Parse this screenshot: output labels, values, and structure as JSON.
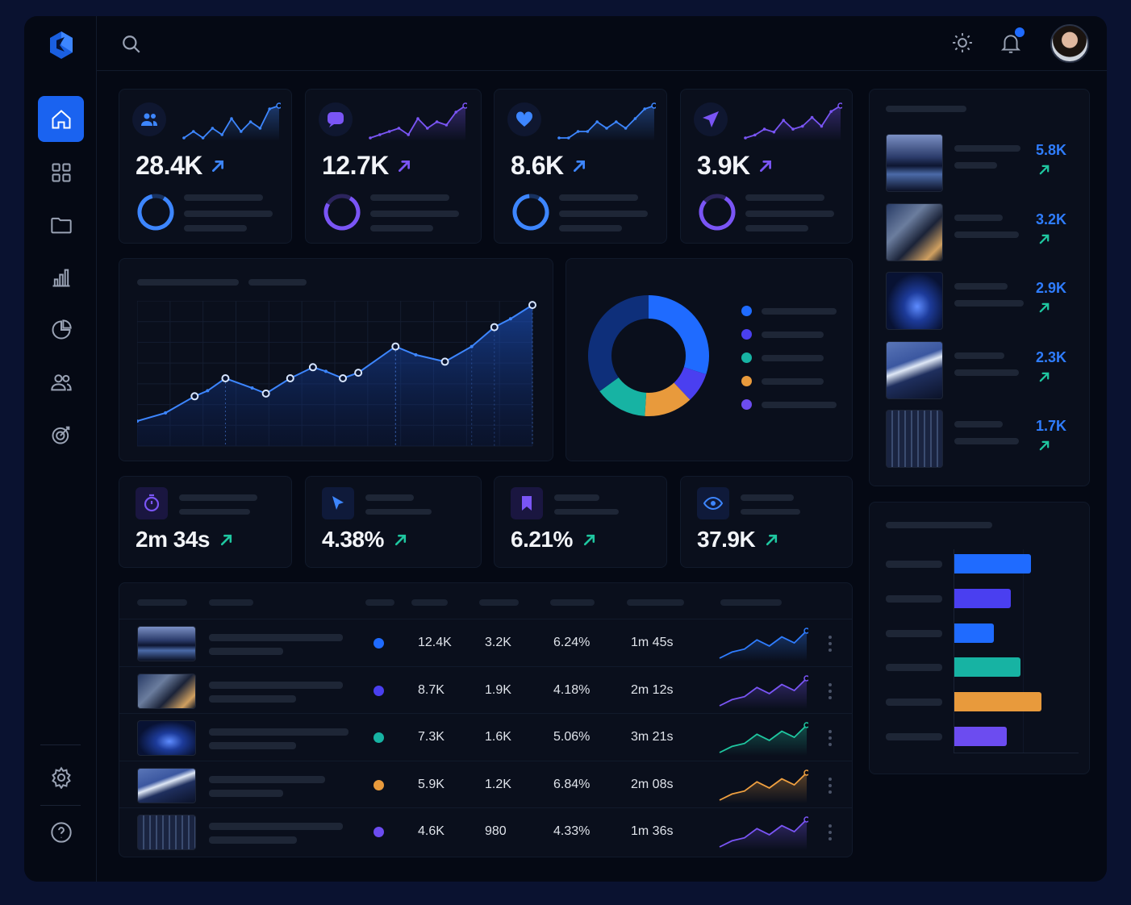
{
  "colors": {
    "blue": "#1f6bff",
    "indigo": "#4a3ff0",
    "purple": "#6c4cf0",
    "teal": "#17b3a3",
    "orange": "#e89a3c",
    "green": "#1fc7a0",
    "navy": "#0e2f7a"
  },
  "topbar": {
    "search_icon": "search-icon",
    "theme_icon": "sun-icon",
    "notification_icon": "bell-icon",
    "has_notification": true
  },
  "sidebar": {
    "items": [
      {
        "icon": "home-icon",
        "active": true
      },
      {
        "icon": "grid-icon"
      },
      {
        "icon": "folder-icon"
      },
      {
        "icon": "bar-chart-icon"
      },
      {
        "icon": "pie-chart-icon"
      },
      {
        "icon": "users-icon"
      },
      {
        "icon": "target-icon"
      }
    ],
    "bottom": [
      {
        "icon": "gear-icon"
      },
      {
        "icon": "help-icon"
      }
    ]
  },
  "top_stats": [
    {
      "icon": "users-icon",
      "value": "28.4K",
      "color": "#2f7dff",
      "ring": 0.88
    },
    {
      "icon": "chat-icon",
      "value": "12.7K",
      "color": "#7a55f5",
      "ring": 0.75
    },
    {
      "icon": "heart-icon",
      "value": "8.6K",
      "color": "#2f7dff",
      "ring": 0.9
    },
    {
      "icon": "send-icon",
      "value": "3.9K",
      "color": "#7a55f5",
      "ring": 0.78
    }
  ],
  "mid_stats": [
    {
      "icon": "timer-icon",
      "value": "2m 34s"
    },
    {
      "icon": "cursor-icon",
      "value": "4.38%"
    },
    {
      "icon": "bookmark-icon",
      "value": "6.21%"
    },
    {
      "icon": "eye-icon",
      "value": "37.9K"
    }
  ],
  "chart_data": [
    {
      "type": "line",
      "ylim": [
        0,
        105
      ],
      "grid": true,
      "values": [
        18,
        24,
        36,
        40,
        49,
        42,
        38,
        49,
        57,
        54,
        49,
        53,
        72,
        66,
        61,
        72,
        86,
        92,
        102
      ]
    },
    {
      "type": "pie",
      "donut": true,
      "values": [
        30,
        8,
        13,
        14,
        35
      ],
      "colors": [
        "#1f6bff",
        "#4a3ff0",
        "#e89a3c",
        "#17b3a3",
        "#0e2f7a"
      ],
      "legend_colors": [
        "#1f6bff",
        "#4a3ff0",
        "#17b3a3",
        "#e89a3c",
        "#6c4cf0"
      ],
      "legend": "right"
    },
    {
      "type": "bar",
      "orientation": "horizontal",
      "values": [
        95,
        70,
        49,
        82,
        108,
        65
      ],
      "colors": [
        "#1f6bff",
        "#4a3ff0",
        "#1f6bff",
        "#17b3a3",
        "#e89a3c",
        "#6c4cf0"
      ]
    }
  ],
  "top_content": [
    {
      "thumb": "lake-mountains",
      "value": "5.8K"
    },
    {
      "thumb": "building",
      "value": "3.2K"
    },
    {
      "thumb": "night-sky",
      "value": "2.9K"
    },
    {
      "thumb": "snow-peak",
      "value": "2.3K"
    },
    {
      "thumb": "interior",
      "value": "1.7K"
    }
  ],
  "table": {
    "rows": [
      {
        "thumb": "lake-mountains",
        "dot": "#1f6bff",
        "c1": "12.4K",
        "c2": "3.2K",
        "c3": "6.24%",
        "c4": "1m 45s",
        "spark": "#2f7dff"
      },
      {
        "thumb": "building",
        "dot": "#4a3ff0",
        "c1": "8.7K",
        "c2": "1.9K",
        "c3": "4.18%",
        "c4": "2m 12s",
        "spark": "#7a55f5"
      },
      {
        "thumb": "night-sky",
        "dot": "#17b3a3",
        "c1": "7.3K",
        "c2": "1.6K",
        "c3": "5.06%",
        "c4": "3m 21s",
        "spark": "#1fc7a0"
      },
      {
        "thumb": "snow-peak",
        "dot": "#e89a3c",
        "c1": "5.9K",
        "c2": "1.2K",
        "c3": "6.84%",
        "c4": "2m 08s",
        "spark": "#f0a040"
      },
      {
        "thumb": "interior",
        "dot": "#6c4cf0",
        "c1": "4.6K",
        "c2": "980",
        "c3": "4.33%",
        "c4": "1m 36s",
        "spark": "#7a55f5"
      }
    ]
  }
}
